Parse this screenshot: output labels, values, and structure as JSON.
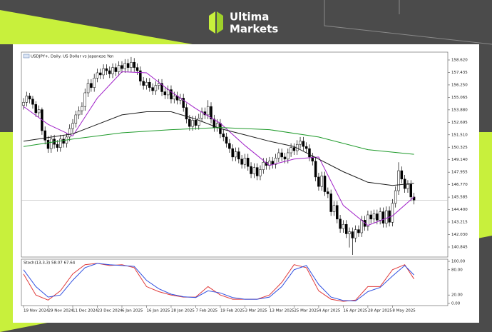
{
  "logo": {
    "line1": "Ultima",
    "line2": "Markets"
  },
  "chart_data": [
    {
      "type": "candlestick",
      "title": "USDJPY+, Daily: US Dollar vs Japanese Yen",
      "xlim": [
        -0.7,
        138
      ],
      "ylim": [
        140.03,
        159.23
      ],
      "yticks": [
        {
          "value": 158.62,
          "label": "158.620"
        },
        {
          "value": 157.435,
          "label": "157.435"
        },
        {
          "value": 156.25,
          "label": "156.250"
        },
        {
          "value": 155.065,
          "label": "155.065"
        },
        {
          "value": 153.88,
          "label": "153.880"
        },
        {
          "value": 152.695,
          "label": "152.695"
        },
        {
          "value": 151.51,
          "label": "151.510"
        },
        {
          "value": 150.325,
          "label": "150.325"
        },
        {
          "value": 149.14,
          "label": "149.140"
        },
        {
          "value": 147.955,
          "label": "147.955"
        },
        {
          "value": 146.77,
          "label": "146.770"
        },
        {
          "value": 145.585,
          "label": "145.585"
        },
        {
          "value": 144.4,
          "label": "144.400"
        },
        {
          "value": 143.215,
          "label": "143.215"
        },
        {
          "value": 142.03,
          "label": "142.030"
        },
        {
          "value": 140.845,
          "label": "140.845"
        }
      ],
      "price_line": 145.3,
      "up_color": "#ffffff",
      "down_color": "#000000",
      "open": [
        154.3,
        154.6,
        155.2,
        154.9,
        154.4,
        153.6,
        153.9,
        151.9,
        151.0,
        150.2,
        151.1,
        150.6,
        150.3,
        151.1,
        150.7,
        151.3,
        152.1,
        152.6,
        153.4,
        153.8,
        154.2,
        155.5,
        156.4,
        156.0,
        156.9,
        157.4,
        157.2,
        157.8,
        157.6,
        157.3,
        157.9,
        157.5,
        158.1,
        157.8,
        158.3,
        157.9,
        158.4,
        157.9,
        157.6,
        156.6,
        156.2,
        156.5,
        156.0,
        155.7,
        156.2,
        156.4,
        155.6,
        155.3,
        155.8,
        154.9,
        155.2,
        154.8,
        155.0,
        154.1,
        153.0,
        152.3,
        152.9,
        152.4,
        153.1,
        153.7,
        153.4,
        154.2,
        153.0,
        152.2,
        152.6,
        151.6,
        151.3,
        150.7,
        150.2,
        149.4,
        149.9,
        149.2,
        148.7,
        149.3,
        148.5,
        147.8,
        148.4,
        147.6,
        148.2,
        148.9,
        148.6,
        149.0,
        148.7,
        149.3,
        149.8,
        149.4,
        149.2,
        149.8,
        150.3,
        150.0,
        150.6,
        150.9,
        150.4,
        150.2,
        149.4,
        149.0,
        147.5,
        146.6,
        147.6,
        146.1,
        145.9,
        144.2,
        144.8,
        143.5,
        142.6,
        143.0,
        142.1,
        142.3,
        141.7,
        142.5,
        142.2,
        143.4,
        142.8,
        143.9,
        143.5,
        144.0,
        143.4,
        144.2,
        143.1,
        144.3,
        143.2,
        145.0,
        146.2,
        148.1,
        147.3,
        146.4,
        146.8,
        145.6
      ],
      "high": [
        155.0,
        155.6,
        155.5,
        155.2,
        154.7,
        154.3,
        154.1,
        152.3,
        151.4,
        151.5,
        151.5,
        151.0,
        151.5,
        151.5,
        151.7,
        152.5,
        153.0,
        153.8,
        154.2,
        154.6,
        155.9,
        156.8,
        156.8,
        157.3,
        157.8,
        157.8,
        158.2,
        158.2,
        158.0,
        158.3,
        158.3,
        158.5,
        158.5,
        158.7,
        158.7,
        158.9,
        158.8,
        158.3,
        158.0,
        157.0,
        156.9,
        156.9,
        156.4,
        156.6,
        156.8,
        156.8,
        156.0,
        156.2,
        156.2,
        155.6,
        155.6,
        155.4,
        155.4,
        154.5,
        153.4,
        153.3,
        153.3,
        153.5,
        154.1,
        154.1,
        154.8,
        154.6,
        153.4,
        153.0,
        153.0,
        152.0,
        151.7,
        151.1,
        150.6,
        150.3,
        150.3,
        149.6,
        149.7,
        149.7,
        148.9,
        148.8,
        148.8,
        148.6,
        149.3,
        149.3,
        149.4,
        149.4,
        149.7,
        150.2,
        150.2,
        149.8,
        150.2,
        150.7,
        150.7,
        151.0,
        151.3,
        151.3,
        150.8,
        150.6,
        149.8,
        149.4,
        147.9,
        148.0,
        148.0,
        146.5,
        146.3,
        145.2,
        145.2,
        143.9,
        143.4,
        143.4,
        142.7,
        142.7,
        142.9,
        142.9,
        143.8,
        143.8,
        144.3,
        144.3,
        144.4,
        144.4,
        144.6,
        144.6,
        144.7,
        144.7,
        145.4,
        146.6,
        148.9,
        148.5,
        147.7,
        147.2,
        147.2,
        146.0
      ],
      "low": [
        153.9,
        154.2,
        154.5,
        154.0,
        153.2,
        153.2,
        151.5,
        150.6,
        149.8,
        149.8,
        150.2,
        149.9,
        149.9,
        150.3,
        150.3,
        150.9,
        151.7,
        152.2,
        153.0,
        153.4,
        153.8,
        155.1,
        155.6,
        155.6,
        156.5,
        156.8,
        156.8,
        157.2,
        156.9,
        156.9,
        157.1,
        157.1,
        157.4,
        157.4,
        157.5,
        157.5,
        157.5,
        157.2,
        156.2,
        155.8,
        155.8,
        155.6,
        155.3,
        155.3,
        155.8,
        155.2,
        154.9,
        154.9,
        154.5,
        154.5,
        154.4,
        154.4,
        153.7,
        152.6,
        151.9,
        151.9,
        152.0,
        152.0,
        152.7,
        153.0,
        153.0,
        152.6,
        151.8,
        151.8,
        151.2,
        150.9,
        150.3,
        149.8,
        149.0,
        149.0,
        148.8,
        148.3,
        148.3,
        148.1,
        147.4,
        147.4,
        147.2,
        147.2,
        147.8,
        148.2,
        148.2,
        148.3,
        148.3,
        148.9,
        149.0,
        148.8,
        148.8,
        149.4,
        149.6,
        149.6,
        150.2,
        150.0,
        149.8,
        149.0,
        148.6,
        147.1,
        146.2,
        146.2,
        145.7,
        145.5,
        143.8,
        143.8,
        143.1,
        142.2,
        142.2,
        141.7,
        140.8,
        140.1,
        141.3,
        141.8,
        141.8,
        142.4,
        142.4,
        143.1,
        143.1,
        143.0,
        143.0,
        142.7,
        142.7,
        142.8,
        142.8,
        144.6,
        145.8,
        146.9,
        146.0,
        146.0,
        145.2,
        144.9
      ],
      "close": [
        154.6,
        155.2,
        154.9,
        154.4,
        153.6,
        153.9,
        151.9,
        151.0,
        150.2,
        151.1,
        150.6,
        150.3,
        151.1,
        150.7,
        151.3,
        152.1,
        152.6,
        153.4,
        153.8,
        154.2,
        155.5,
        156.4,
        156.0,
        156.9,
        157.4,
        157.2,
        157.8,
        157.6,
        157.3,
        157.9,
        157.5,
        158.1,
        157.8,
        158.3,
        157.9,
        158.4,
        157.9,
        157.6,
        156.6,
        156.2,
        156.5,
        156.0,
        155.7,
        156.2,
        156.4,
        155.6,
        155.3,
        155.8,
        154.9,
        155.2,
        154.8,
        155.0,
        154.1,
        153.0,
        152.3,
        152.9,
        152.4,
        153.1,
        153.7,
        153.4,
        154.2,
        153.0,
        152.2,
        152.6,
        151.6,
        151.3,
        150.7,
        150.2,
        149.4,
        149.9,
        149.2,
        148.7,
        149.3,
        148.5,
        147.8,
        148.4,
        147.6,
        148.2,
        148.9,
        148.6,
        149.0,
        148.7,
        149.3,
        149.8,
        149.4,
        149.2,
        149.8,
        150.3,
        150.0,
        150.6,
        150.9,
        150.4,
        150.2,
        149.4,
        149.0,
        147.5,
        146.6,
        147.6,
        146.1,
        145.9,
        144.2,
        144.8,
        143.5,
        142.6,
        143.0,
        142.1,
        142.3,
        141.7,
        142.5,
        142.2,
        143.4,
        142.8,
        143.9,
        143.5,
        144.0,
        143.4,
        144.2,
        143.1,
        144.3,
        143.2,
        145.0,
        146.2,
        148.1,
        147.3,
        146.4,
        146.8,
        145.6,
        145.3
      ],
      "lines": [
        {
          "color": "#a020c8",
          "x": [
            0,
            8,
            16,
            24,
            32,
            40,
            48,
            56,
            64,
            72,
            80,
            88,
            96,
            104,
            112,
            120,
            127
          ],
          "values": [
            154.2,
            152.5,
            151.4,
            155.0,
            157.5,
            157.4,
            155.6,
            154.0,
            152.6,
            150.5,
            148.6,
            149.2,
            149.4,
            144.8,
            142.9,
            143.8,
            145.6
          ]
        },
        {
          "color": "#1a1a1a",
          "x": [
            0,
            16,
            32,
            40,
            48,
            56,
            64,
            72,
            80,
            88,
            96,
            104,
            112,
            120,
            127
          ],
          "values": [
            150.9,
            151.6,
            153.4,
            153.7,
            153.7,
            153.0,
            152.1,
            151.5,
            150.9,
            150.4,
            149.2,
            148.0,
            147.0,
            146.7,
            146.9
          ]
        },
        {
          "color": "#1e9a2a",
          "x": [
            0,
            16,
            32,
            48,
            64,
            80,
            96,
            112,
            127
          ],
          "values": [
            150.4,
            151.1,
            151.7,
            152.0,
            152.2,
            152.0,
            151.3,
            150.1,
            149.66
          ]
        }
      ]
    },
    {
      "type": "line",
      "title": "Stoch(13,3,3) 58.07 67.64",
      "xlim": [
        -0.7,
        138
      ],
      "ylim": [
        0,
        100
      ],
      "yticks": [
        {
          "value": 100,
          "label": "100.00"
        },
        {
          "value": 80,
          "label": "80.00"
        },
        {
          "value": 20,
          "label": "20.00"
        },
        {
          "value": 0,
          "label": "0.00"
        }
      ],
      "xticks": [
        {
          "value": 0,
          "label": "19 Nov 2024"
        },
        {
          "value": 8,
          "label": "29 Nov 2024"
        },
        {
          "value": 16,
          "label": "11 Dec 2024"
        },
        {
          "value": 24,
          "label": "23 Dec 2024"
        },
        {
          "value": 32,
          "label": "6 Jan 2025"
        },
        {
          "value": 40,
          "label": "16 Jan 2025"
        },
        {
          "value": 48,
          "label": "28 Jan 2025"
        },
        {
          "value": 56,
          "label": "7 Feb 2025"
        },
        {
          "value": 64,
          "label": "19 Feb 2025"
        },
        {
          "value": 72,
          "label": "3 Mar 2025"
        },
        {
          "value": 80,
          "label": "13 Mar 2025"
        },
        {
          "value": 88,
          "label": "25 Mar 2025"
        },
        {
          "value": 96,
          "label": "4 Apr 2025"
        },
        {
          "value": 104,
          "label": "16 Apr 2025"
        },
        {
          "value": 112,
          "label": "28 Apr 2025"
        },
        {
          "value": 120,
          "label": "8 May 2025"
        }
      ],
      "x": [
        0,
        4,
        8,
        12,
        16,
        20,
        24,
        28,
        32,
        36,
        40,
        44,
        48,
        52,
        56,
        60,
        64,
        68,
        72,
        76,
        80,
        84,
        88,
        92,
        96,
        100,
        104,
        108,
        112,
        116,
        120,
        124,
        127
      ],
      "series": [
        {
          "color": "#e03a3a",
          "values": [
            70,
            20,
            8,
            30,
            70,
            92,
            95,
            90,
            92,
            85,
            40,
            28,
            20,
            15,
            15,
            40,
            20,
            10,
            10,
            10,
            20,
            50,
            92,
            85,
            30,
            10,
            5,
            8,
            40,
            40,
            80,
            92,
            58.07
          ]
        },
        {
          "color": "#3050e0",
          "values": [
            80,
            40,
            15,
            20,
            55,
            85,
            95,
            92,
            90,
            88,
            55,
            35,
            22,
            16,
            14,
            30,
            25,
            14,
            10,
            10,
            15,
            40,
            80,
            90,
            45,
            15,
            7,
            6,
            28,
            38,
            65,
            90,
            67.64
          ]
        }
      ]
    }
  ]
}
